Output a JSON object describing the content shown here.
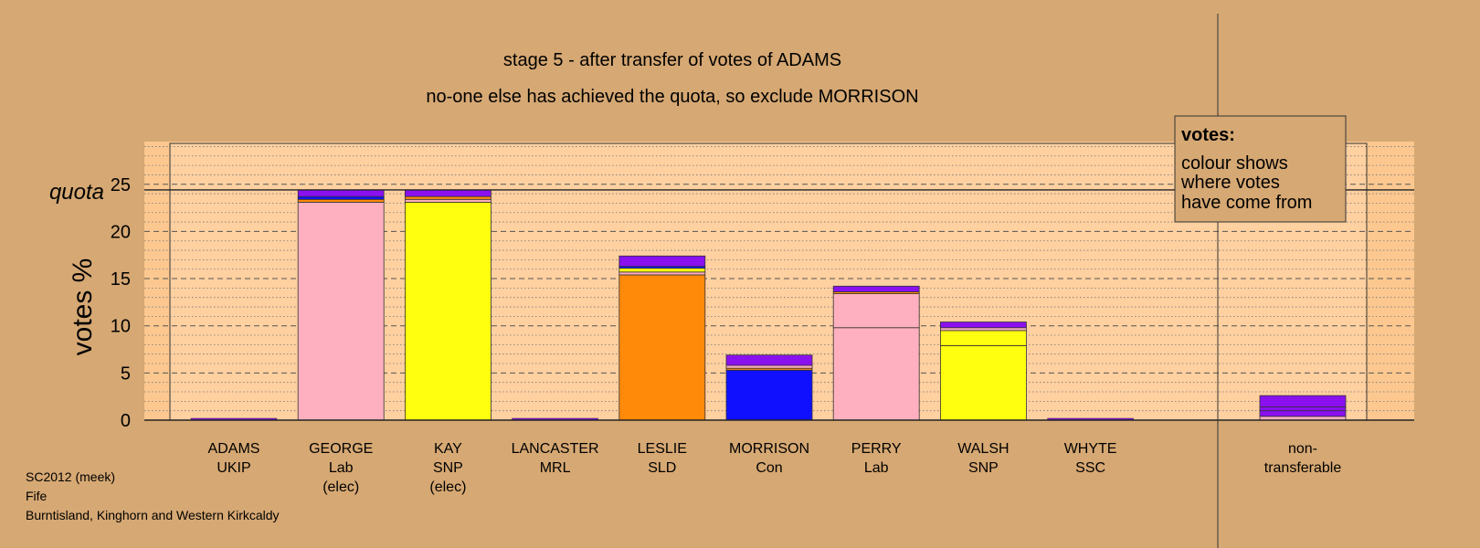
{
  "chart_data": {
    "type": "bar",
    "title": "stage 5 - after transfer of votes of ADAMS",
    "subtitle": "no-one else has achieved the quota, so exclude MORRISON",
    "ylabel": "votes %",
    "ylim": [
      0,
      30
    ],
    "yticks": [
      0,
      5,
      10,
      15,
      20,
      25
    ],
    "quota": 24.4,
    "quota_label": "quota",
    "grid": true,
    "candidates": [
      {
        "name": "ADAMS",
        "party": "UKIP",
        "note": "",
        "segments": []
      },
      {
        "name": "GEORGE",
        "party": "Lab",
        "note": "(elec)",
        "segments": [
          {
            "value": 23.1,
            "color": "#ffb0c0"
          },
          {
            "value": 0.3,
            "color": "#ff8a0a"
          },
          {
            "value": 0.3,
            "color": "#1010ff"
          },
          {
            "value": 0.7,
            "color": "#8a10f0"
          }
        ]
      },
      {
        "name": "KAY",
        "party": "SNP",
        "note": "(elec)",
        "segments": [
          {
            "value": 23.1,
            "color": "#ffff10"
          },
          {
            "value": 0.3,
            "color": "#ffb0c0"
          },
          {
            "value": 0.3,
            "color": "#ff8a0a"
          },
          {
            "value": 0.7,
            "color": "#8a10f0"
          }
        ]
      },
      {
        "name": "LANCASTER",
        "party": "MRL",
        "note": "",
        "segments": []
      },
      {
        "name": "LESLIE",
        "party": "SLD",
        "note": "",
        "segments": [
          {
            "value": 15.4,
            "color": "#ff8a0a"
          },
          {
            "value": 0.3,
            "color": "#ffb0c0"
          },
          {
            "value": 0.4,
            "color": "#ffff10"
          },
          {
            "value": 0.2,
            "color": "#1010ff"
          },
          {
            "value": 1.1,
            "color": "#8a10f0"
          }
        ]
      },
      {
        "name": "MORRISON",
        "party": "Con",
        "note": "",
        "segments": [
          {
            "value": 5.3,
            "color": "#1010ff"
          },
          {
            "value": 0.2,
            "color": "#ff8a0a"
          },
          {
            "value": 0.3,
            "color": "#ffb0c0"
          },
          {
            "value": 1.1,
            "color": "#8a10f0"
          }
        ]
      },
      {
        "name": "PERRY",
        "party": "Lab",
        "note": "",
        "segments": [
          {
            "value": 9.8,
            "color": "#ffb0c0"
          },
          {
            "value": 3.6,
            "color": "#ffb0c0"
          },
          {
            "value": 0.2,
            "color": "#ff8a0a"
          },
          {
            "value": 0.6,
            "color": "#8a10f0"
          }
        ]
      },
      {
        "name": "WALSH",
        "party": "SNP",
        "note": "",
        "segments": [
          {
            "value": 7.9,
            "color": "#ffff10"
          },
          {
            "value": 1.6,
            "color": "#ffff10"
          },
          {
            "value": 0.3,
            "color": "#ffb0c0"
          },
          {
            "value": 0.6,
            "color": "#8a10f0"
          }
        ]
      },
      {
        "name": "WHYTE",
        "party": "SSC",
        "note": "",
        "segments": []
      }
    ],
    "nontransferable": {
      "label_line1": "non-",
      "label_line2": "transferable",
      "segments": [
        {
          "value": 0.4,
          "color": "#ffb0c0"
        },
        {
          "value": 0.6,
          "color": "#8a10f0"
        },
        {
          "value": 0.4,
          "color": "#8a10f0"
        },
        {
          "value": 1.2,
          "color": "#8a10f0"
        }
      ]
    },
    "legend": {
      "title": "votes:",
      "lines": [
        "colour shows",
        "where votes",
        "have come from"
      ]
    }
  },
  "footer": {
    "line1": "SC2012 (meek)",
    "line2": "Fife",
    "line3": "Burntisland, Kinghorn and Western Kirkcaldy"
  }
}
